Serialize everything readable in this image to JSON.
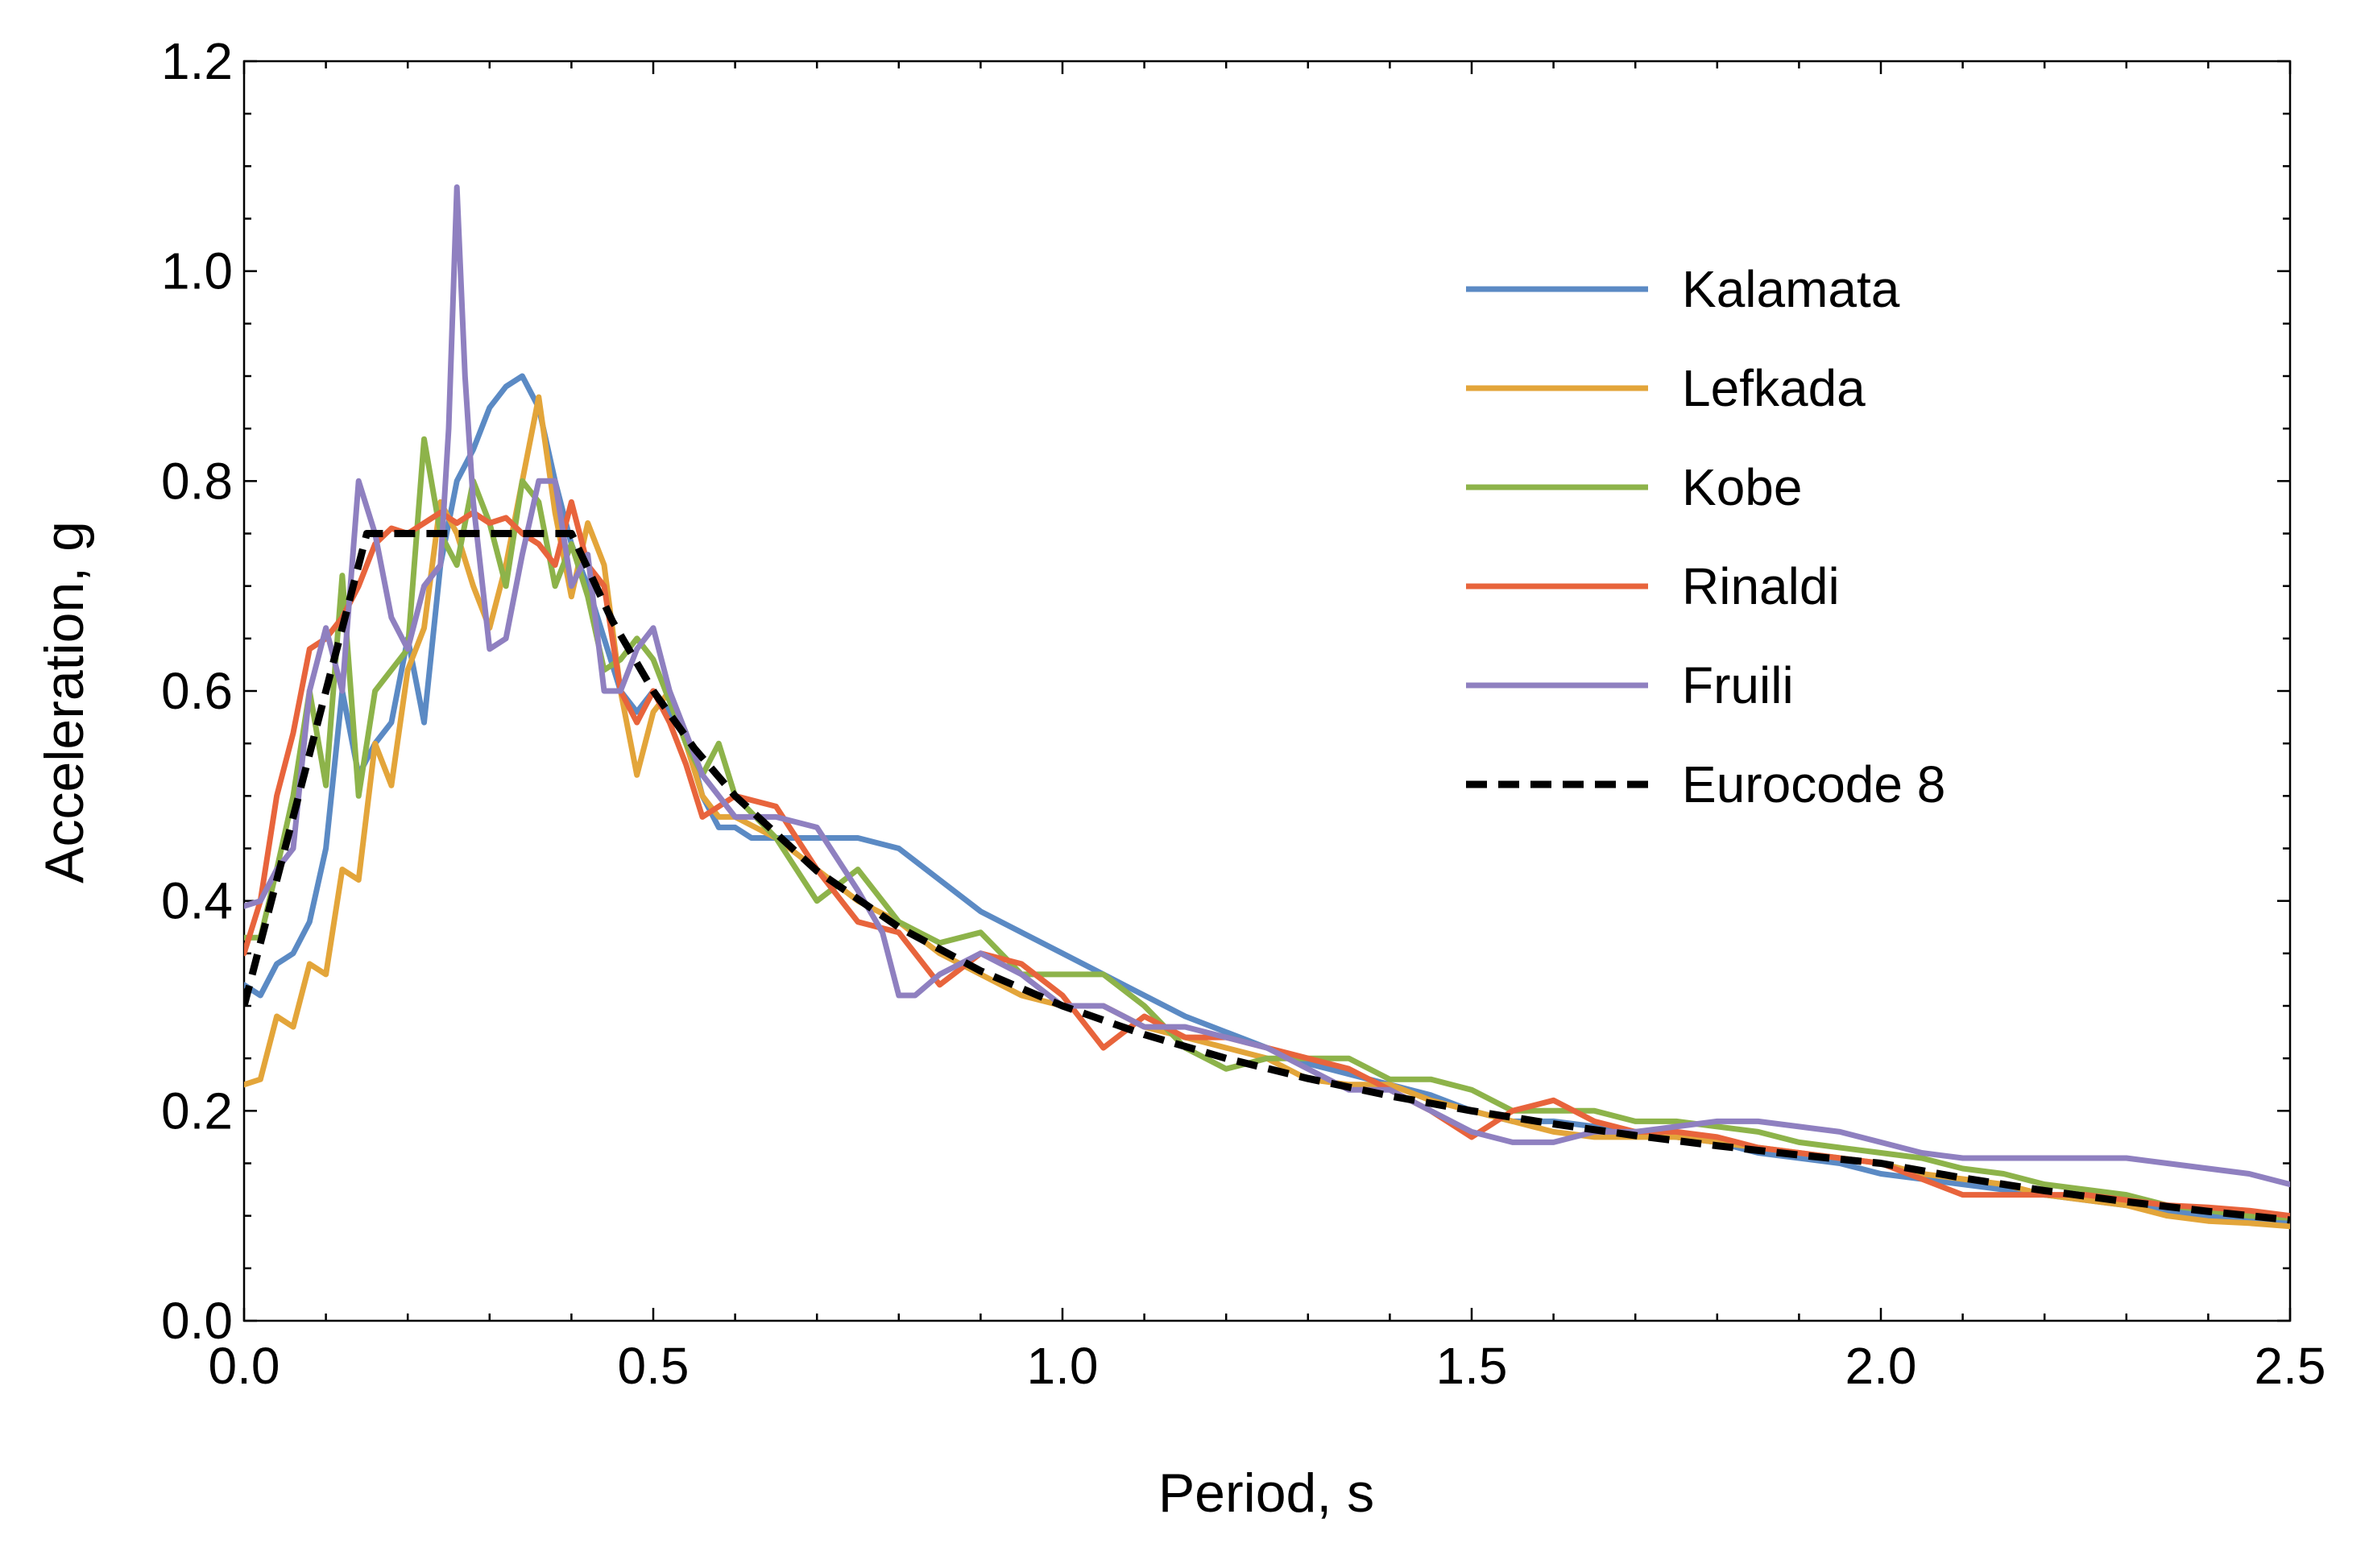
{
  "chart_data": {
    "type": "line",
    "title": "",
    "xlabel": "Period, s",
    "ylabel": "Acceleration, g",
    "xlim": [
      0,
      2.5
    ],
    "ylim": [
      0,
      1.2
    ],
    "x_ticks": [
      0,
      0.5,
      1.0,
      1.5,
      2.0,
      2.5
    ],
    "x_tick_labels": [
      "0.0",
      "0.5",
      "1.0",
      "1.5",
      "2.0",
      "2.5"
    ],
    "y_ticks": [
      0,
      0.2,
      0.4,
      0.6,
      0.8,
      1.0,
      1.2
    ],
    "y_tick_labels": [
      "0.0",
      "0.2",
      "0.4",
      "0.6",
      "0.8",
      "1.0",
      "1.2"
    ],
    "x_minor_step": 0.1,
    "y_minor_step": 0.05,
    "grid": false,
    "legend_position": "right",
    "series": [
      {
        "name": "Kalamata",
        "color": "#5B8AC4",
        "dashed": false,
        "x": [
          0,
          0.02,
          0.04,
          0.06,
          0.08,
          0.1,
          0.12,
          0.14,
          0.16,
          0.18,
          0.2,
          0.22,
          0.24,
          0.26,
          0.28,
          0.3,
          0.32,
          0.34,
          0.36,
          0.38,
          0.4,
          0.42,
          0.44,
          0.46,
          0.48,
          0.5,
          0.52,
          0.54,
          0.56,
          0.58,
          0.6,
          0.62,
          0.65,
          0.7,
          0.75,
          0.8,
          0.85,
          0.9,
          0.95,
          1.0,
          1.05,
          1.1,
          1.15,
          1.2,
          1.25,
          1.3,
          1.35,
          1.4,
          1.45,
          1.5,
          1.55,
          1.6,
          1.65,
          1.7,
          1.75,
          1.8,
          1.85,
          1.9,
          1.95,
          2.0,
          2.05,
          2.1,
          2.15,
          2.2,
          2.25,
          2.3,
          2.35,
          2.4,
          2.45,
          2.5
        ],
        "values": [
          0.32,
          0.31,
          0.34,
          0.35,
          0.38,
          0.45,
          0.6,
          0.52,
          0.55,
          0.57,
          0.65,
          0.57,
          0.72,
          0.8,
          0.83,
          0.87,
          0.89,
          0.9,
          0.87,
          0.8,
          0.74,
          0.7,
          0.65,
          0.6,
          0.58,
          0.6,
          0.58,
          0.56,
          0.5,
          0.47,
          0.47,
          0.46,
          0.46,
          0.46,
          0.46,
          0.45,
          0.42,
          0.39,
          0.37,
          0.35,
          0.33,
          0.31,
          0.29,
          0.275,
          0.26,
          0.245,
          0.235,
          0.225,
          0.215,
          0.2,
          0.19,
          0.19,
          0.185,
          0.18,
          0.175,
          0.17,
          0.16,
          0.155,
          0.15,
          0.14,
          0.135,
          0.13,
          0.125,
          0.12,
          0.115,
          0.11,
          0.105,
          0.1,
          0.098,
          0.095
        ]
      },
      {
        "name": "Lefkada",
        "color": "#E3A53A",
        "dashed": false,
        "x": [
          0,
          0.02,
          0.04,
          0.06,
          0.08,
          0.1,
          0.12,
          0.14,
          0.16,
          0.18,
          0.2,
          0.22,
          0.24,
          0.26,
          0.28,
          0.3,
          0.32,
          0.34,
          0.36,
          0.38,
          0.4,
          0.42,
          0.44,
          0.46,
          0.48,
          0.5,
          0.52,
          0.54,
          0.56,
          0.58,
          0.6,
          0.65,
          0.7,
          0.75,
          0.8,
          0.85,
          0.9,
          0.95,
          1.0,
          1.05,
          1.1,
          1.15,
          1.2,
          1.25,
          1.3,
          1.35,
          1.4,
          1.45,
          1.5,
          1.55,
          1.6,
          1.65,
          1.7,
          1.75,
          1.8,
          1.85,
          1.9,
          1.95,
          2.0,
          2.05,
          2.1,
          2.15,
          2.2,
          2.25,
          2.3,
          2.35,
          2.4,
          2.45,
          2.5
        ],
        "values": [
          0.225,
          0.23,
          0.29,
          0.28,
          0.34,
          0.33,
          0.43,
          0.42,
          0.55,
          0.51,
          0.62,
          0.66,
          0.78,
          0.75,
          0.7,
          0.66,
          0.72,
          0.8,
          0.88,
          0.77,
          0.69,
          0.76,
          0.72,
          0.6,
          0.52,
          0.58,
          0.6,
          0.55,
          0.5,
          0.48,
          0.48,
          0.46,
          0.43,
          0.4,
          0.38,
          0.35,
          0.33,
          0.31,
          0.3,
          0.3,
          0.28,
          0.27,
          0.26,
          0.25,
          0.23,
          0.225,
          0.225,
          0.21,
          0.2,
          0.19,
          0.18,
          0.175,
          0.175,
          0.175,
          0.17,
          0.165,
          0.16,
          0.155,
          0.15,
          0.14,
          0.135,
          0.13,
          0.12,
          0.115,
          0.11,
          0.1,
          0.095,
          0.093,
          0.09
        ]
      },
      {
        "name": "Kobe",
        "color": "#8DB34A",
        "dashed": false,
        "x": [
          0,
          0.02,
          0.04,
          0.06,
          0.08,
          0.1,
          0.12,
          0.14,
          0.16,
          0.18,
          0.2,
          0.22,
          0.24,
          0.26,
          0.28,
          0.3,
          0.32,
          0.34,
          0.36,
          0.38,
          0.4,
          0.42,
          0.44,
          0.46,
          0.48,
          0.5,
          0.52,
          0.54,
          0.56,
          0.58,
          0.6,
          0.65,
          0.7,
          0.75,
          0.8,
          0.85,
          0.9,
          0.95,
          1.0,
          1.05,
          1.1,
          1.15,
          1.2,
          1.25,
          1.3,
          1.35,
          1.4,
          1.45,
          1.5,
          1.55,
          1.6,
          1.65,
          1.7,
          1.75,
          1.8,
          1.85,
          1.9,
          1.95,
          2.0,
          2.05,
          2.1,
          2.15,
          2.2,
          2.25,
          2.3,
          2.35,
          2.4,
          2.45,
          2.5
        ],
        "values": [
          0.365,
          0.365,
          0.43,
          0.5,
          0.6,
          0.51,
          0.71,
          0.5,
          0.6,
          0.62,
          0.64,
          0.84,
          0.75,
          0.72,
          0.8,
          0.76,
          0.7,
          0.8,
          0.78,
          0.7,
          0.74,
          0.69,
          0.62,
          0.63,
          0.65,
          0.63,
          0.59,
          0.55,
          0.52,
          0.55,
          0.5,
          0.46,
          0.4,
          0.43,
          0.38,
          0.36,
          0.37,
          0.33,
          0.33,
          0.33,
          0.3,
          0.26,
          0.24,
          0.25,
          0.25,
          0.25,
          0.23,
          0.23,
          0.22,
          0.2,
          0.2,
          0.2,
          0.19,
          0.19,
          0.185,
          0.18,
          0.17,
          0.165,
          0.16,
          0.155,
          0.145,
          0.14,
          0.13,
          0.125,
          0.12,
          0.11,
          0.105,
          0.1,
          0.098
        ]
      },
      {
        "name": "Rinaldi",
        "color": "#E8643C",
        "dashed": false,
        "x": [
          0,
          0.02,
          0.04,
          0.06,
          0.08,
          0.1,
          0.12,
          0.14,
          0.16,
          0.18,
          0.2,
          0.22,
          0.24,
          0.26,
          0.28,
          0.3,
          0.32,
          0.34,
          0.36,
          0.38,
          0.4,
          0.42,
          0.44,
          0.46,
          0.48,
          0.5,
          0.52,
          0.54,
          0.56,
          0.58,
          0.6,
          0.65,
          0.7,
          0.75,
          0.8,
          0.85,
          0.9,
          0.95,
          1.0,
          1.05,
          1.1,
          1.15,
          1.2,
          1.25,
          1.3,
          1.35,
          1.4,
          1.45,
          1.5,
          1.55,
          1.6,
          1.65,
          1.7,
          1.75,
          1.8,
          1.85,
          1.9,
          1.95,
          2.0,
          2.05,
          2.1,
          2.15,
          2.2,
          2.25,
          2.3,
          2.35,
          2.4,
          2.45,
          2.5
        ],
        "values": [
          0.35,
          0.4,
          0.5,
          0.56,
          0.64,
          0.65,
          0.67,
          0.7,
          0.74,
          0.755,
          0.75,
          0.76,
          0.77,
          0.76,
          0.77,
          0.76,
          0.765,
          0.75,
          0.74,
          0.72,
          0.78,
          0.72,
          0.7,
          0.6,
          0.57,
          0.6,
          0.57,
          0.53,
          0.48,
          0.49,
          0.5,
          0.49,
          0.43,
          0.38,
          0.37,
          0.32,
          0.35,
          0.34,
          0.31,
          0.26,
          0.29,
          0.27,
          0.27,
          0.26,
          0.25,
          0.24,
          0.22,
          0.2,
          0.175,
          0.2,
          0.21,
          0.19,
          0.18,
          0.18,
          0.175,
          0.165,
          0.16,
          0.155,
          0.15,
          0.135,
          0.12,
          0.12,
          0.12,
          0.12,
          0.115,
          0.11,
          0.108,
          0.105,
          0.1
        ]
      },
      {
        "name": "Fruili",
        "color": "#8F80C0",
        "dashed": false,
        "x": [
          0,
          0.02,
          0.04,
          0.06,
          0.08,
          0.1,
          0.12,
          0.14,
          0.16,
          0.18,
          0.2,
          0.22,
          0.24,
          0.25,
          0.26,
          0.27,
          0.28,
          0.3,
          0.32,
          0.34,
          0.36,
          0.38,
          0.4,
          0.42,
          0.44,
          0.46,
          0.48,
          0.5,
          0.52,
          0.54,
          0.56,
          0.58,
          0.6,
          0.65,
          0.7,
          0.75,
          0.78,
          0.8,
          0.82,
          0.85,
          0.9,
          0.95,
          1.0,
          1.05,
          1.1,
          1.15,
          1.2,
          1.25,
          1.3,
          1.35,
          1.4,
          1.45,
          1.5,
          1.55,
          1.6,
          1.65,
          1.7,
          1.75,
          1.8,
          1.85,
          1.9,
          1.95,
          2.0,
          2.05,
          2.1,
          2.15,
          2.2,
          2.25,
          2.3,
          2.35,
          2.4,
          2.45,
          2.5
        ],
        "values": [
          0.395,
          0.4,
          0.43,
          0.45,
          0.6,
          0.66,
          0.6,
          0.8,
          0.75,
          0.67,
          0.64,
          0.7,
          0.72,
          0.85,
          1.08,
          0.9,
          0.78,
          0.64,
          0.65,
          0.73,
          0.8,
          0.8,
          0.7,
          0.73,
          0.6,
          0.6,
          0.64,
          0.66,
          0.6,
          0.56,
          0.52,
          0.5,
          0.48,
          0.48,
          0.47,
          0.41,
          0.37,
          0.31,
          0.31,
          0.33,
          0.35,
          0.33,
          0.3,
          0.3,
          0.28,
          0.28,
          0.27,
          0.26,
          0.24,
          0.22,
          0.22,
          0.2,
          0.18,
          0.17,
          0.17,
          0.18,
          0.18,
          0.185,
          0.19,
          0.19,
          0.185,
          0.18,
          0.17,
          0.16,
          0.155,
          0.155,
          0.155,
          0.155,
          0.155,
          0.15,
          0.145,
          0.14,
          0.13
        ]
      },
      {
        "name": "Eurocode 8",
        "color": "#000000",
        "dashed": true,
        "x": [
          0,
          0.15,
          0.4,
          0.45,
          0.5,
          0.55,
          0.6,
          0.7,
          0.8,
          0.9,
          1.0,
          1.1,
          1.2,
          1.3,
          1.4,
          1.5,
          1.6,
          1.7,
          1.8,
          1.9,
          2.0,
          2.1,
          2.2,
          2.3,
          2.4,
          2.5
        ],
        "values": [
          0.3,
          0.75,
          0.75,
          0.6667,
          0.6,
          0.5455,
          0.5,
          0.4286,
          0.375,
          0.3333,
          0.3,
          0.2727,
          0.25,
          0.2308,
          0.2143,
          0.2,
          0.1875,
          0.1765,
          0.1667,
          0.1579,
          0.15,
          0.136,
          0.124,
          0.1134,
          0.1042,
          0.096
        ]
      }
    ]
  }
}
